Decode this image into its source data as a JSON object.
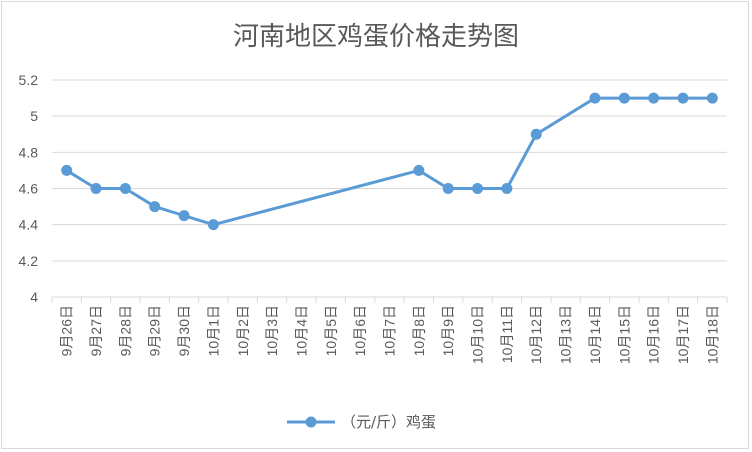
{
  "chart_data": {
    "type": "line",
    "title": "河南地区鸡蛋价格走势图",
    "categories": [
      "9月26日",
      "9月27日",
      "9月28日",
      "9月29日",
      "9月30日",
      "10月1日",
      "10月2日",
      "10月3日",
      "10月4日",
      "10月5日",
      "10月6日",
      "10月7日",
      "10月8日",
      "10月9日",
      "10月10日",
      "10月11日",
      "10月12日",
      "10月13日",
      "10月14日",
      "10月15日",
      "10月16日",
      "10月17日",
      "10月18日"
    ],
    "series": [
      {
        "name": "（元/斤）鸡蛋",
        "color": "#5b9bd5",
        "values": [
          4.7,
          4.6,
          4.6,
          4.5,
          4.45,
          4.4,
          null,
          null,
          null,
          null,
          null,
          null,
          4.7,
          4.6,
          4.6,
          4.6,
          4.9,
          null,
          5.1,
          5.1,
          5.1,
          5.1,
          5.1
        ]
      }
    ],
    "yticks": [
      "4",
      "4.2",
      "4.4",
      "4.6",
      "4.8",
      "5",
      "5.2"
    ],
    "ylim": [
      4,
      5.2
    ],
    "grid": true,
    "legend": "bottom"
  }
}
